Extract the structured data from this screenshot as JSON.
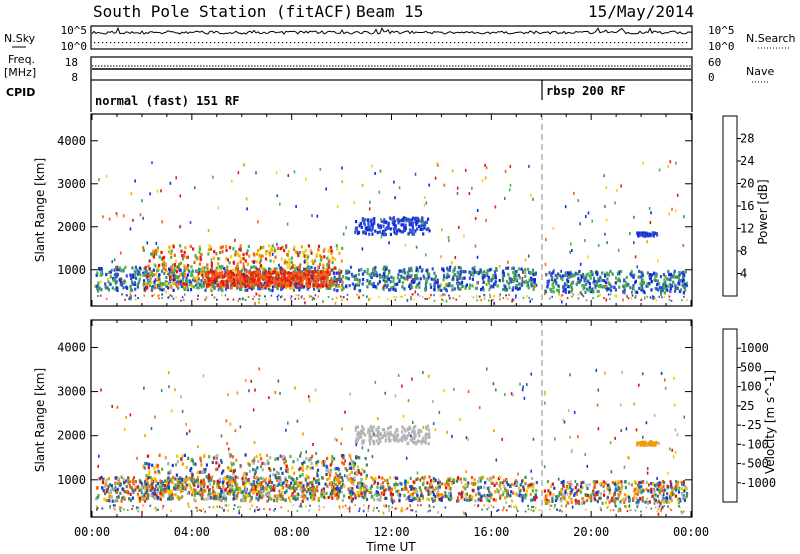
{
  "header": {
    "station": "South Pole Station (fitACF)",
    "beam": "Beam 15",
    "date": "15/May/2014"
  },
  "status_panels": {
    "nsky_label": "N.Sky",
    "nsearch_label": "N.Search",
    "freq_label": "Freq.",
    "freq_unit": "[MHz]",
    "nave_label": "Nave",
    "cpid_label": "CPID",
    "noise_ticks": [
      "10^5",
      "10^0"
    ],
    "freq_ticks": [
      "18",
      "8"
    ],
    "nave_ticks": [
      "60",
      "0"
    ]
  },
  "cpid": [
    {
      "label": "normal (fast) 151 RF",
      "start": "00:00",
      "end": "18:00"
    },
    {
      "label": "rbsp 200 RF",
      "start": "18:00",
      "end": "24:00"
    }
  ],
  "chart_data": [
    {
      "type": "heatmap",
      "title": "Power",
      "xlabel": "Time UT",
      "ylabel": "Slant Range [km]",
      "xlim_hours": [
        0,
        24
      ],
      "ylim_km": [
        180,
        4600
      ],
      "x_ticks": [
        "00:00",
        "04:00",
        "08:00",
        "12:00",
        "16:00",
        "20:00",
        "00:00"
      ],
      "y_ticks": [
        1000,
        2000,
        3000,
        4000
      ],
      "colorbar": {
        "label": "Power [dB]",
        "ticks": [
          "4",
          "8",
          "12",
          "16",
          "20",
          "24",
          "28"
        ],
        "colors": [
          "#1428e0",
          "#2f56c8",
          "#3f8a73",
          "#4eb04a",
          "#f0d020",
          "#f5a500",
          "#f06018",
          "#e11a12"
        ]
      },
      "regions": [
        {
          "t": [
            0.1,
            17.8
          ],
          "r": [
            550,
            1100
          ],
          "level": "low-mid"
        },
        {
          "t": [
            2.0,
            10.0
          ],
          "r": [
            600,
            1600
          ],
          "level": "high"
        },
        {
          "t": [
            4.5,
            9.5
          ],
          "r": [
            650,
            1000
          ],
          "level": "max"
        },
        {
          "t": [
            10.5,
            13.5
          ],
          "r": [
            1850,
            2250
          ],
          "level": "low"
        },
        {
          "t": [
            18.1,
            23.8
          ],
          "r": [
            500,
            1000
          ],
          "level": "low-mid"
        },
        {
          "t": [
            21.8,
            22.6
          ],
          "r": [
            1820,
            1900
          ],
          "level": "low"
        }
      ]
    },
    {
      "type": "heatmap",
      "title": "Velocity",
      "xlabel": "Time UT",
      "ylabel": "Slant Range [km]",
      "xlim_hours": [
        0,
        24
      ],
      "ylim_km": [
        180,
        4600
      ],
      "x_ticks": [
        "00:00",
        "04:00",
        "08:00",
        "12:00",
        "16:00",
        "20:00",
        "00:00"
      ],
      "y_ticks": [
        1000,
        2000,
        3000,
        4000
      ],
      "colorbar": {
        "label": "Velocity [m s^-1]",
        "ticks": [
          "1000",
          "500",
          "100",
          "25",
          "-25",
          "-100",
          "-500",
          "-1000"
        ],
        "colors": [
          "#1a3cc8",
          "#2e6a9e",
          "#3c8a6a",
          "#58b438",
          "#b4b4b4",
          "#f0c800",
          "#f59a00",
          "#f06010",
          "#e01010"
        ]
      },
      "regions": [
        {
          "t": [
            0.1,
            17.8
          ],
          "r": [
            550,
            1100
          ],
          "level": "mixed"
        },
        {
          "t": [
            2.0,
            11.0
          ],
          "r": [
            600,
            1600
          ],
          "level": "mixed"
        },
        {
          "t": [
            10.5,
            13.5
          ],
          "r": [
            1850,
            2250
          ],
          "level": "near-zero"
        },
        {
          "t": [
            18.1,
            23.8
          ],
          "r": [
            500,
            1000
          ],
          "level": "mixed"
        },
        {
          "t": [
            21.8,
            22.6
          ],
          "r": [
            1820,
            1900
          ],
          "level": "negative"
        }
      ]
    }
  ]
}
